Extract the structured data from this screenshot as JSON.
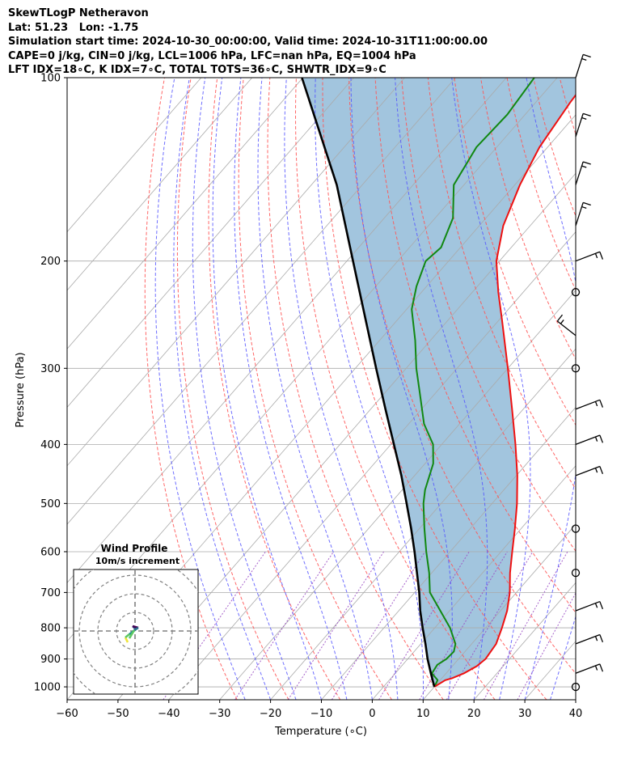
{
  "header": {
    "line1": "SkewTLogP Netheravon",
    "line2": "Lat: 51.23   Lon: -1.75",
    "line3": "Simulation start time: 2024-10-30_00:00:00, Valid time: 2024-10-31T11:00:00.00",
    "line4": "CAPE=0 j/kg, CIN=0 j/kg, LCL=1006 hPa, LFC=nan hPa, EQ=1004 hPa",
    "line5": "LFT IDX=18∘C, K IDX=7∘C, TOTAL TOTS=36∘C, SHWTR_IDX=9∘C"
  },
  "colors": {
    "temperature": "#ee1111",
    "dewpoint": "#118811",
    "parcel": "#000000",
    "cape_fill": "#a2c5de",
    "dry_adiabat": "#ff5555",
    "moist_adiabat": "#5555ff",
    "mixing_ratio": "#9b4fc4",
    "isotherm": "#aaaaaa"
  },
  "chart_data": {
    "type": "line",
    "subtype": "skew-t log-p",
    "xlabel": "Temperature (∘C)",
    "ylabel": "Pressure (hPa)",
    "xlim": [
      -60,
      40
    ],
    "ylim": [
      1050,
      100
    ],
    "x_ticks": [
      "−60",
      "−50",
      "−40",
      "−30",
      "−20",
      "−10",
      "0",
      "10",
      "20",
      "30",
      "40"
    ],
    "y_ticks": [
      "1000",
      "900",
      "800",
      "700",
      "600",
      "500",
      "400",
      "300",
      "200",
      "100"
    ],
    "series": [
      {
        "name": "Temperature",
        "pressure": [
          1000,
          975,
          968,
          950,
          925,
          900,
          850,
          800,
          750,
          700,
          650,
          600,
          550,
          500,
          450,
          400,
          350,
          300,
          250,
          225,
          200,
          175,
          150,
          130,
          110,
          100
        ],
        "values": [
          10,
          11,
          12,
          13.5,
          14.8,
          15.3,
          14.8,
          13.2,
          11.3,
          8.7,
          5.4,
          2.2,
          -1.2,
          -5.1,
          -9.8,
          -15.5,
          -22.2,
          -30.0,
          -39.4,
          -44.9,
          -50.6,
          -55.3,
          -59.0,
          -61.6,
          -63.2,
          -63.8
        ]
      },
      {
        "name": "Dewpoint",
        "pressure": [
          1000,
          975,
          950,
          920,
          900,
          875,
          850,
          800,
          700,
          650,
          600,
          550,
          500,
          475,
          430,
          400,
          370,
          330,
          300,
          270,
          240,
          220,
          200,
          190,
          170,
          150,
          130,
          115,
          100
        ],
        "values": [
          10,
          9.5,
          7.2,
          6.8,
          7.6,
          7.8,
          6.8,
          3.0,
          -7.0,
          -10.5,
          -14.7,
          -19.0,
          -23.5,
          -25.5,
          -28.4,
          -31.7,
          -37.0,
          -43.0,
          -48.0,
          -53.0,
          -59.0,
          -62.0,
          -64.5,
          -63.8,
          -66.5,
          -72.0,
          -74.0,
          -73.5,
          -74.5
        ]
      },
      {
        "name": "Parcel profile",
        "pressure": [
          1000,
          950,
          900,
          850,
          800,
          750,
          700,
          650,
          600,
          550,
          500,
          450,
          400,
          350,
          300,
          250,
          200,
          150,
          100
        ],
        "values": [
          10,
          7.0,
          3.9,
          0.9,
          -2.4,
          -5.8,
          -9.1,
          -12.9,
          -17.0,
          -21.6,
          -26.8,
          -32.6,
          -39.4,
          -47.1,
          -55.9,
          -66.2,
          -78.8,
          -95.0,
          -120.2
        ]
      }
    ],
    "wind_barbs": {
      "pressure": [
        100,
        125,
        150,
        175,
        200,
        225,
        265,
        300,
        350,
        400,
        450,
        550,
        650,
        750,
        850,
        950,
        1000
      ],
      "kind": [
        "barb",
        "barb",
        "barb",
        "barb",
        "barb",
        "calm",
        "barb",
        "calm",
        "barb",
        "barb",
        "barb",
        "calm",
        "calm",
        "barb",
        "barb",
        "barb",
        "calm"
      ]
    },
    "wind_profile_inset": {
      "title": "Wind Profile",
      "subtitle": "10m/s increment"
    }
  }
}
